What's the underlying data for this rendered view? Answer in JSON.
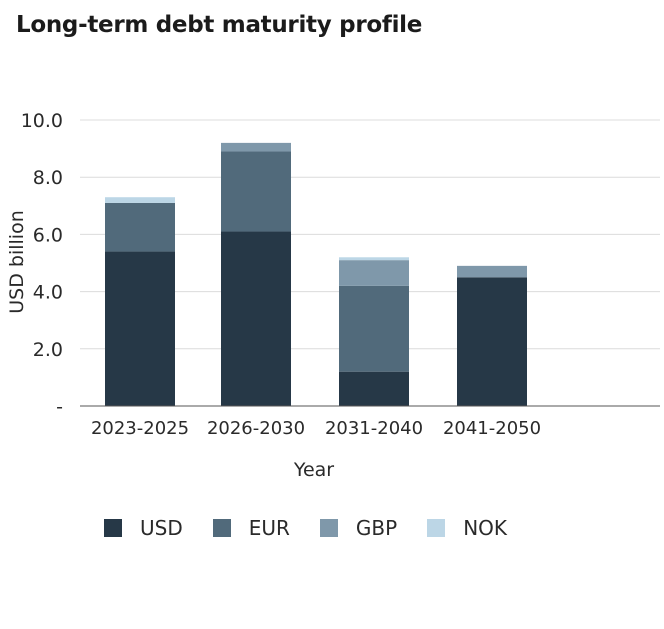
{
  "title": "Long-term debt maturity profile",
  "chart_data": {
    "type": "bar",
    "stacked": true,
    "title": "Long-term debt maturity profile",
    "xlabel": "Year",
    "ylabel": "USD billion",
    "ylim": [
      0,
      10
    ],
    "y_ticks": [
      0,
      2,
      4,
      6,
      8,
      10
    ],
    "y_tick_labels": [
      "-",
      "2.0",
      "4.0",
      "6.0",
      "8.0",
      "10.0"
    ],
    "grid": true,
    "legend_position": "bottom",
    "categories": [
      "2023-2025",
      "2026-2030",
      "2031-2040",
      "2041-2050"
    ],
    "series": [
      {
        "name": "USD",
        "color": "#263847",
        "values": [
          5.4,
          6.1,
          1.2,
          4.5
        ]
      },
      {
        "name": "EUR",
        "color": "#516a7b",
        "values": [
          1.7,
          2.8,
          3.0,
          0.0
        ]
      },
      {
        "name": "GBP",
        "color": "#7f98aa",
        "values": [
          0.0,
          0.3,
          0.9,
          0.4
        ]
      },
      {
        "name": "NOK",
        "color": "#bcd6e6",
        "values": [
          0.2,
          0.0,
          0.1,
          0.0
        ]
      }
    ]
  }
}
